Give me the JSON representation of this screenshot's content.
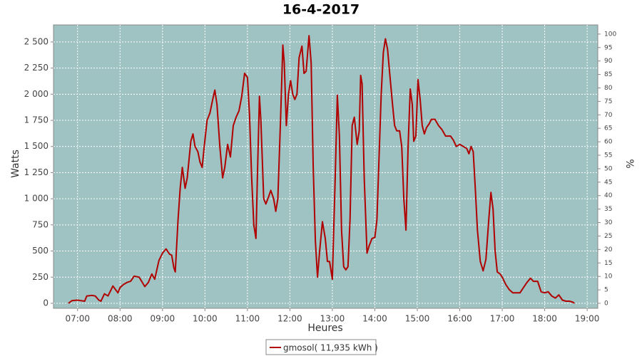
{
  "chart_data": {
    "type": "line",
    "title": "16-4-2017",
    "x_label": "Heures",
    "y_label": "Watts",
    "y2_label": "%",
    "grid": true,
    "background": "#9fc2c2",
    "xlim": [
      "06:26",
      "19:15"
    ],
    "xticks": [
      "07:00",
      "08:00",
      "09:00",
      "10:00",
      "11:00",
      "12:00",
      "13:00",
      "14:00",
      "15:00",
      "16:00",
      "17:00",
      "18:00",
      "19:00"
    ],
    "ylim": [
      -48,
      2663
    ],
    "yticks": [
      0,
      250,
      500,
      750,
      {
        "value": 1000,
        "label": "1 000"
      },
      {
        "value": 1250,
        "label": "1 250"
      },
      {
        "value": 1500,
        "label": "1 500"
      },
      {
        "value": 1750,
        "label": "1 750"
      },
      {
        "value": 2000,
        "label": "2 000"
      },
      {
        "value": 2250,
        "label": "2 250"
      },
      {
        "value": 2500,
        "label": "2 500"
      }
    ],
    "y2lim": [
      -1.85,
      103.4
    ],
    "y2ticks": [
      0,
      5,
      10,
      15,
      20,
      25,
      30,
      35,
      40,
      45,
      50,
      55,
      60,
      65,
      70,
      75,
      80,
      85,
      90,
      95,
      100
    ],
    "x": [
      "06:47",
      "06:52",
      "07:00",
      "07:05",
      "07:10",
      "07:13",
      "07:20",
      "07:25",
      "07:30",
      "07:33",
      "07:38",
      "07:43",
      "07:50",
      "07:57",
      "08:00",
      "08:05",
      "08:10",
      "08:15",
      "08:20",
      "08:27",
      "08:35",
      "08:40",
      "08:45",
      "08:49",
      "08:55",
      "09:00",
      "09:05",
      "09:10",
      "09:13",
      "09:16",
      "09:18",
      "09:22",
      "09:25",
      "09:28",
      "09:32",
      "09:35",
      "09:40",
      "09:43",
      "09:46",
      "09:50",
      "09:53",
      "09:56",
      "09:59",
      "10:03",
      "10:07",
      "10:11",
      "10:14",
      "10:17",
      "10:21",
      "10:25",
      "10:28",
      "10:32",
      "10:36",
      "10:40",
      "10:44",
      "10:48",
      "10:52",
      "10:56",
      "11:00",
      "11:03",
      "11:06",
      "11:09",
      "11:12",
      "11:14",
      "11:17",
      "11:19",
      "11:23",
      "11:26",
      "11:30",
      "11:33",
      "11:37",
      "11:40",
      "11:43",
      "11:47",
      "11:50",
      "11:52",
      "11:55",
      "11:58",
      "12:01",
      "12:04",
      "12:07",
      "12:10",
      "12:13",
      "12:17",
      "12:20",
      "12:23",
      "12:27",
      "12:30",
      "12:33",
      "12:36",
      "12:39",
      "12:42",
      "12:46",
      "12:50",
      "12:53",
      "12:56",
      "13:00",
      "13:04",
      "13:07",
      "13:10",
      "13:13",
      "13:16",
      "13:19",
      "13:22",
      "13:25",
      "13:28",
      "13:31",
      "13:35",
      "13:38",
      "13:40",
      "13:42",
      "13:45",
      "13:49",
      "13:52",
      "13:56",
      "14:00",
      "14:03",
      "14:06",
      "14:09",
      "14:12",
      "14:15",
      "14:18",
      "14:21",
      "14:25",
      "14:28",
      "14:31",
      "14:35",
      "14:38",
      "14:41",
      "14:44",
      "14:47",
      "14:50",
      "14:53",
      "14:55",
      "14:58",
      "15:01",
      "15:04",
      "15:07",
      "15:10",
      "15:13",
      "15:17",
      "15:20",
      "15:25",
      "15:30",
      "15:35",
      "15:40",
      "15:47",
      "15:51",
      "15:55",
      "16:00",
      "16:05",
      "16:10",
      "16:13",
      "16:16",
      "16:19",
      "16:22",
      "16:25",
      "16:29",
      "16:33",
      "16:37",
      "16:41",
      "16:44",
      "16:47",
      "16:50",
      "16:53",
      "16:57",
      "17:00",
      "17:05",
      "17:10",
      "17:15",
      "17:25",
      "17:30",
      "17:35",
      "17:40",
      "17:44",
      "17:50",
      "17:55",
      "18:00",
      "18:05",
      "18:10",
      "18:15",
      "18:20",
      "18:25",
      "18:30",
      "18:35",
      "18:40",
      "18:42"
    ],
    "series": [
      {
        "name": "gmosol( 11,935 kWh )",
        "color": "#b00000",
        "values": [
          0,
          25,
          30,
          25,
          20,
          70,
          75,
          70,
          30,
          20,
          90,
          70,
          165,
          100,
          150,
          180,
          200,
          210,
          260,
          250,
          160,
          200,
          280,
          230,
          410,
          480,
          520,
          470,
          460,
          340,
          300,
          800,
          1100,
          1300,
          1100,
          1200,
          1550,
          1620,
          1500,
          1450,
          1350,
          1300,
          1500,
          1750,
          1820,
          1950,
          2040,
          1900,
          1500,
          1200,
          1300,
          1520,
          1400,
          1700,
          1780,
          1840,
          1980,
          2200,
          2160,
          1800,
          1200,
          750,
          620,
          1200,
          1980,
          1750,
          1000,
          950,
          1020,
          1080,
          1000,
          880,
          1000,
          1800,
          2470,
          2300,
          1700,
          2000,
          2130,
          2000,
          1950,
          2000,
          2350,
          2460,
          2200,
          2220,
          2560,
          2300,
          1300,
          600,
          250,
          500,
          780,
          620,
          400,
          400,
          230,
          1200,
          1990,
          1600,
          700,
          350,
          320,
          350,
          800,
          1700,
          1780,
          1520,
          1650,
          2180,
          2100,
          1200,
          480,
          550,
          620,
          630,
          800,
          1400,
          2000,
          2400,
          2530,
          2430,
          2200,
          1900,
          1700,
          1650,
          1650,
          1500,
          1000,
          700,
          1500,
          2050,
          1900,
          1550,
          1600,
          2140,
          1950,
          1700,
          1620,
          1680,
          1720,
          1760,
          1760,
          1700,
          1660,
          1600,
          1600,
          1560,
          1500,
          1520,
          1500,
          1480,
          1430,
          1500,
          1450,
          1100,
          700,
          400,
          310,
          420,
          800,
          1060,
          900,
          500,
          300,
          280,
          250,
          180,
          130,
          100,
          100,
          150,
          200,
          240,
          210,
          210,
          110,
          100,
          110,
          70,
          50,
          80,
          30,
          20,
          20,
          10,
          0
        ]
      }
    ]
  }
}
